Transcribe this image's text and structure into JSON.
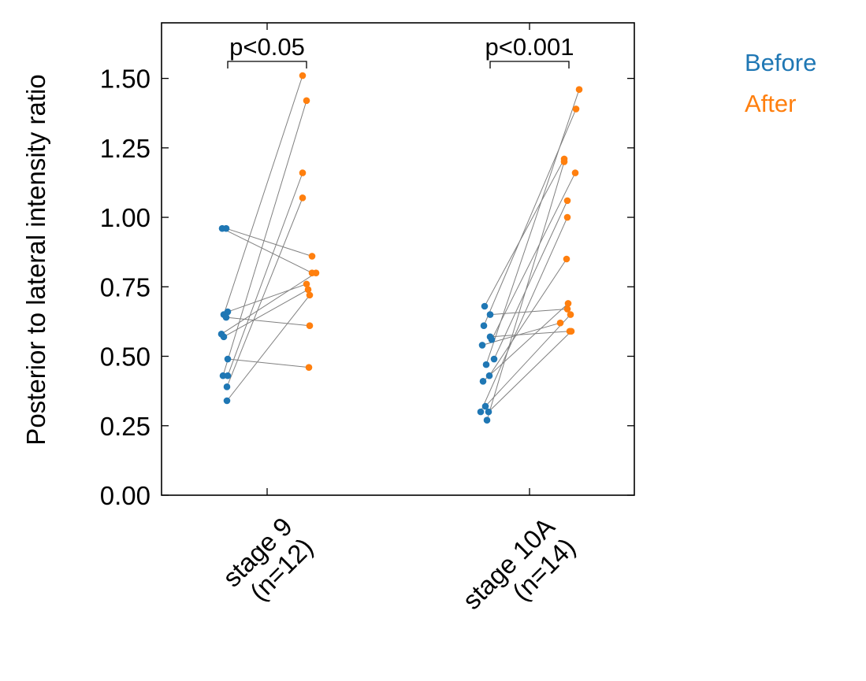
{
  "chart_data": {
    "type": "scatter",
    "title": "",
    "xlabel": "",
    "ylabel": "Posterior to lateral intensity ratio",
    "ylim": [
      0,
      1.7
    ],
    "yticks": [
      "0.00",
      "0.25",
      "0.50",
      "0.75",
      "1.00",
      "1.25",
      "1.50"
    ],
    "grid": false,
    "legend_placement": "top-right, outside axes",
    "categories": [
      {
        "line1": "stage 9",
        "line2": "(n=12)"
      },
      {
        "line1": "stage 10A",
        "line2": "(n=14)"
      }
    ],
    "series": [
      {
        "name": "Before",
        "color": "#1f77b4"
      },
      {
        "name": "After",
        "color": "#ff7f0e"
      }
    ],
    "pair_line_color": "#808080",
    "groups": [
      {
        "annotation": "p<0.05",
        "before": [
          0.96,
          0.96,
          0.66,
          0.65,
          0.64,
          0.58,
          0.57,
          0.49,
          0.43,
          0.43,
          0.39,
          0.34
        ],
        "after": [
          0.8,
          0.86,
          0.76,
          1.51,
          0.61,
          0.8,
          0.74,
          0.46,
          1.42,
          1.16,
          1.07,
          0.72
        ]
      },
      {
        "annotation": "p<0.001",
        "before": [
          0.68,
          0.65,
          0.61,
          0.57,
          0.56,
          0.54,
          0.49,
          0.47,
          0.43,
          0.41,
          0.32,
          0.3,
          0.3,
          0.27
        ],
        "after": [
          1.21,
          0.67,
          1.39,
          0.59,
          1.16,
          0.62,
          1.06,
          1.46,
          0.85,
          0.69,
          0.65,
          1.0,
          0.59,
          1.2
        ]
      }
    ]
  }
}
